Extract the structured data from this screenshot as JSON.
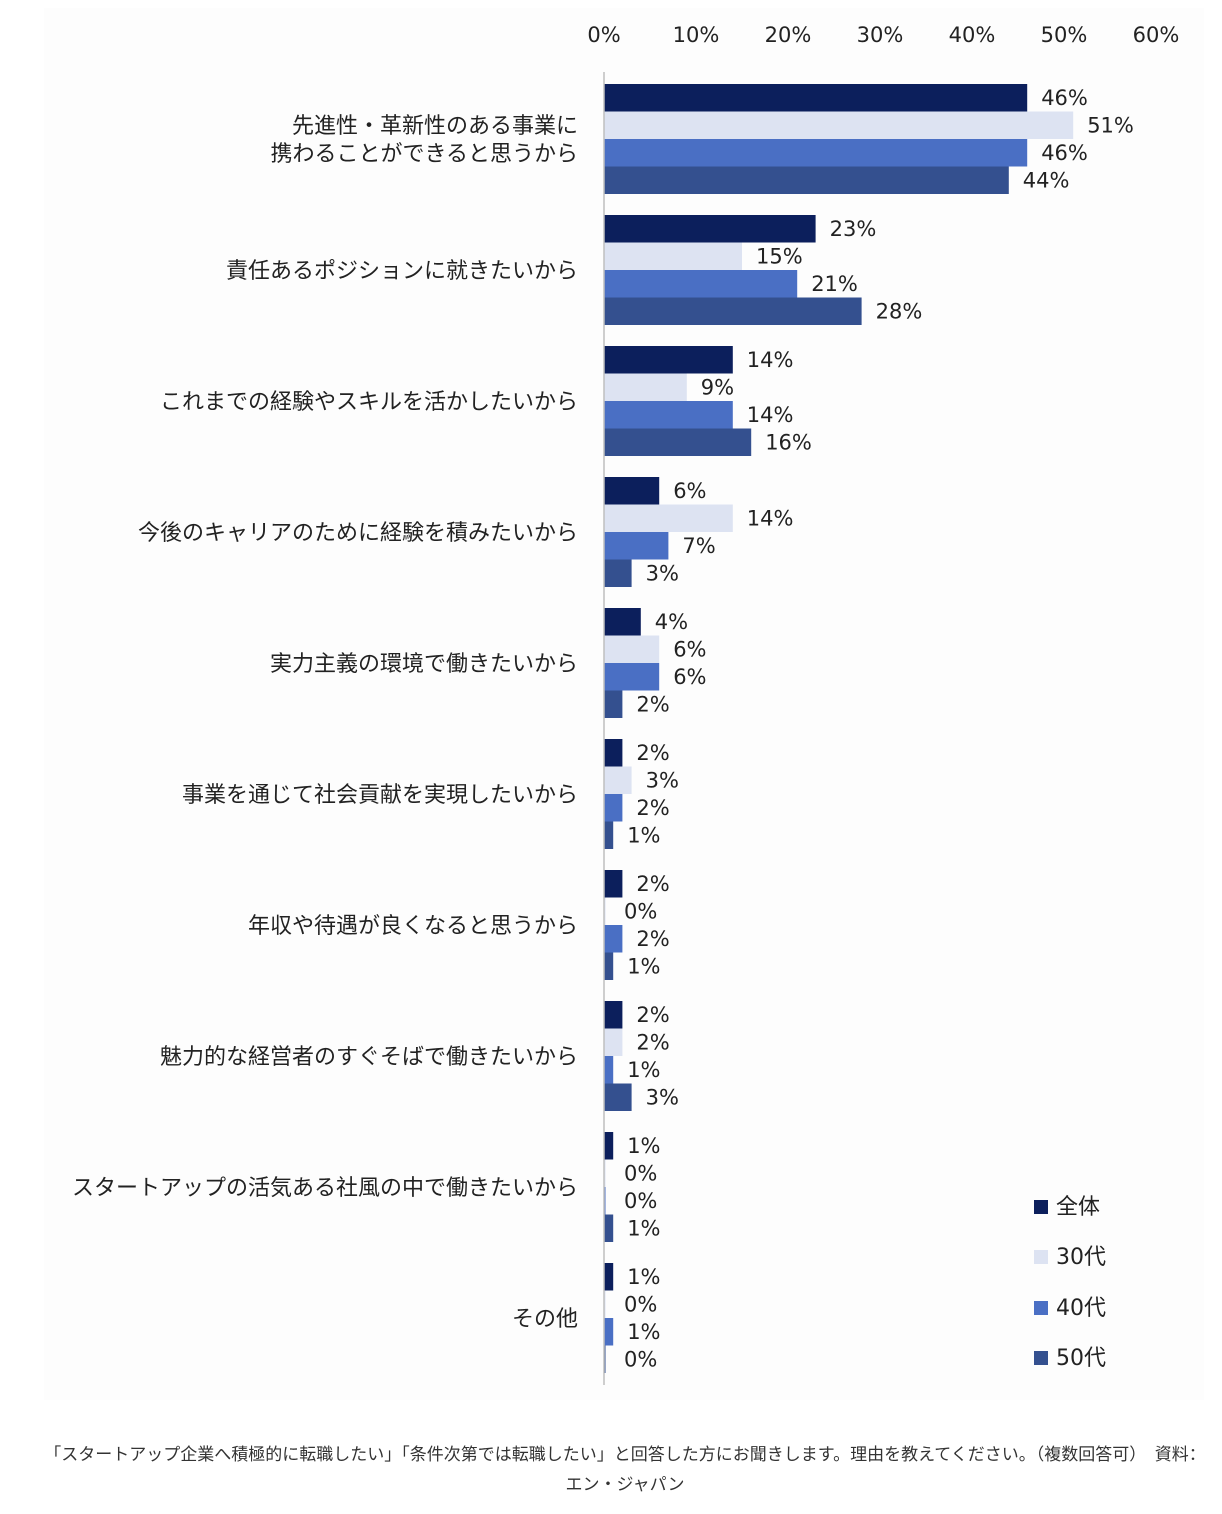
{
  "chart_data": {
    "type": "bar",
    "orientation": "horizontal",
    "categories": [
      "先進性・革新性のある事業に\n携わることができると思うから",
      "責任あるポジションに就きたいから",
      "これまでの経験やスキルを活かしたいから",
      "今後のキャリアのために経験を積みたいから",
      "実力主義の環境で働きたいから",
      "事業を通じて社会貢献を実現したいから",
      "年収や待遇が良くなると思うから",
      "魅力的な経営者のすぐそばで働きたいから",
      "スタートアップの活気ある社風の中で働きたいから",
      "その他"
    ],
    "series": [
      {
        "name": "全体",
        "color": "#0c1f5c",
        "values": [
          46,
          23,
          14,
          6,
          4,
          2,
          2,
          2,
          1,
          1
        ]
      },
      {
        "name": "30代",
        "color": "#dde3f2",
        "values": [
          51,
          15,
          9,
          14,
          6,
          3,
          0,
          2,
          0,
          0
        ]
      },
      {
        "name": "40代",
        "color": "#4a6fc4",
        "values": [
          46,
          21,
          14,
          7,
          6,
          2,
          2,
          1,
          0,
          1
        ]
      },
      {
        "name": "50代",
        "color": "#34508f",
        "values": [
          44,
          28,
          16,
          3,
          2,
          1,
          1,
          3,
          1,
          0
        ]
      }
    ],
    "xlim": [
      0,
      60
    ],
    "xticks": [
      "0%",
      "10%",
      "20%",
      "30%",
      "40%",
      "50%",
      "60%"
    ],
    "value_suffix": "%",
    "legend_position": "bottom-right",
    "grid": false
  },
  "caption": "「スタートアップ企業へ積極的に転職したい」「条件次第では転職したい」と回答した方にお聞きします。理由を教えてください。（複数回答可）　資料：エン・ジャパン"
}
